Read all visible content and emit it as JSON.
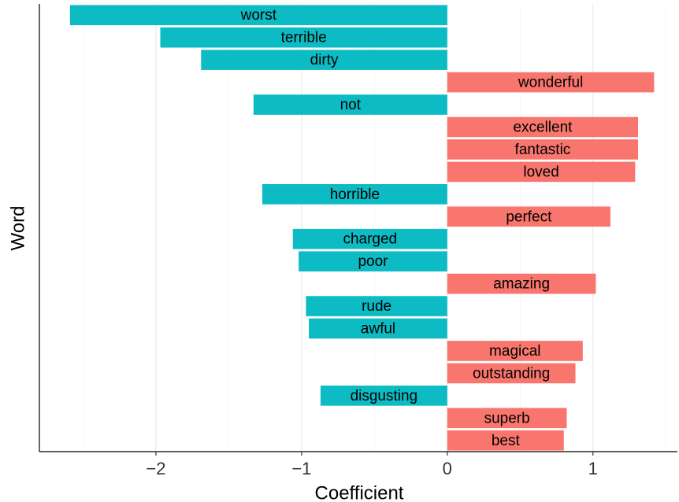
{
  "chart_data": {
    "type": "barh",
    "x_label": "Coefficient",
    "y_label": "Word",
    "categories": [
      "worst",
      "terrible",
      "dirty",
      "wonderful",
      "not",
      "excellent",
      "fantastic",
      "loved",
      "horrible",
      "perfect",
      "charged",
      "poor",
      "amazing",
      "rude",
      "awful",
      "magical",
      "outstanding",
      "disgusting",
      "superb",
      "best"
    ],
    "values": [
      -2.59,
      -1.97,
      -1.69,
      1.42,
      -1.33,
      1.31,
      1.31,
      1.29,
      -1.27,
      1.12,
      -1.06,
      -1.02,
      1.02,
      -0.97,
      -0.95,
      0.93,
      0.88,
      -0.87,
      0.82,
      0.8
    ],
    "color_negative": "#0CBBC3",
    "color_positive": "#F8766D",
    "xlim": [
      -2.8,
      1.58
    ],
    "xticks": [
      {
        "value": -2,
        "label": "−2"
      },
      {
        "value": -1,
        "label": "−1"
      },
      0,
      1
    ],
    "minor_xticks": [
      -2.5,
      -1.5,
      -0.5,
      0.5,
      1.5
    ],
    "grid": true
  }
}
